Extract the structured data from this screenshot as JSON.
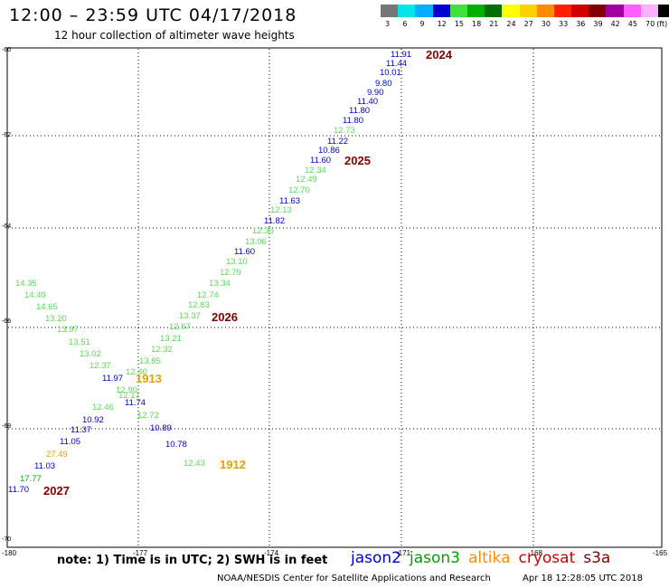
{
  "title": "12:00 – 23:59 UTC 04/17/2018",
  "subtitle": "12 hour collection of altimeter wave heights",
  "legend": {
    "labels": [
      "3",
      "6",
      "9",
      "12",
      "15",
      "18",
      "21",
      "24",
      "27",
      "30",
      "33",
      "36",
      "39",
      "42",
      "45",
      "70",
      "(ft)"
    ],
    "colors": [
      "#777777",
      "#00e5e5",
      "#00b0ff",
      "#0000d0",
      "#40e040",
      "#00b000",
      "#007000",
      "#ffff00",
      "#ffd000",
      "#ff8c00",
      "#ff2000",
      "#d00000",
      "#800000",
      "#a000a0",
      "#ff60ff",
      "#ffb0ff",
      "#000000"
    ]
  },
  "map": {
    "lon_ticks": [
      "-180",
      "-177",
      "-174",
      "-171",
      "-168",
      "-165"
    ],
    "lat_ticks": [
      "-60",
      "-62",
      "-64",
      "-66",
      "-68",
      "-70"
    ]
  },
  "points": [
    {
      "t": "11.91",
      "c": "#0000d0"
    },
    {
      "t": "11.44",
      "c": "#0000d0"
    },
    {
      "t": "10.01",
      "c": "#0000d0"
    },
    {
      "t": "9.80",
      "c": "#0000d0"
    },
    {
      "t": "9.90",
      "c": "#0000d0"
    },
    {
      "t": "11.40",
      "c": "#0000d0"
    },
    {
      "t": "11.80",
      "c": "#0000d0"
    },
    {
      "t": "11.80",
      "c": "#0000d0"
    },
    {
      "t": "12.73",
      "c": "#55dd55"
    },
    {
      "t": "11.22",
      "c": "#0000d0"
    },
    {
      "t": "10.86",
      "c": "#0000d0"
    },
    {
      "t": "11.60",
      "c": "#0000d0"
    },
    {
      "t": "12.34",
      "c": "#55dd55"
    },
    {
      "t": "12.49",
      "c": "#55dd55"
    },
    {
      "t": "12.70",
      "c": "#55dd55"
    },
    {
      "t": "11.63",
      "c": "#0000d0"
    },
    {
      "t": "12.13",
      "c": "#55dd55"
    },
    {
      "t": "11.82",
      "c": "#0000d0"
    },
    {
      "t": "12.30",
      "c": "#55dd55"
    },
    {
      "t": "13.06",
      "c": "#55dd55"
    },
    {
      "t": "11.60",
      "c": "#0000d0"
    },
    {
      "t": "13.10",
      "c": "#55dd55"
    },
    {
      "t": "12.79",
      "c": "#55dd55"
    },
    {
      "t": "13.34",
      "c": "#55dd55"
    },
    {
      "t": "12.74",
      "c": "#55dd55"
    },
    {
      "t": "12.83",
      "c": "#55dd55"
    },
    {
      "t": "13.37",
      "c": "#55dd55"
    },
    {
      "t": "12.67",
      "c": "#55dd55"
    },
    {
      "t": "13.21",
      "c": "#55dd55"
    },
    {
      "t": "12.32",
      "c": "#55dd55"
    },
    {
      "t": "13.85",
      "c": "#55dd55"
    },
    {
      "t": "12.40",
      "c": "#55dd55"
    },
    {
      "t": "12.90",
      "c": "#55dd55"
    },
    {
      "t": "12.17",
      "c": "#55dd55"
    },
    {
      "t": "11.74",
      "c": "#0000d0"
    },
    {
      "t": "12.72",
      "c": "#55dd55"
    },
    {
      "t": "10.89",
      "c": "#0000d0"
    },
    {
      "t": "10.78",
      "c": "#0000d0"
    },
    {
      "t": "12.43",
      "c": "#55dd55"
    },
    {
      "t": "14.35",
      "c": "#55dd55"
    },
    {
      "t": "14.49",
      "c": "#55dd55"
    },
    {
      "t": "14.65",
      "c": "#55dd55"
    },
    {
      "t": "13.20",
      "c": "#55dd55"
    },
    {
      "t": "13.97",
      "c": "#55dd55"
    },
    {
      "t": "13.51",
      "c": "#55dd55"
    },
    {
      "t": "13.02",
      "c": "#55dd55"
    },
    {
      "t": "12.37",
      "c": "#55dd55"
    },
    {
      "t": "11.97",
      "c": "#0000d0"
    },
    {
      "t": "12.46",
      "c": "#55dd55"
    },
    {
      "t": "10.92",
      "c": "#0000d0"
    },
    {
      "t": "11.37",
      "c": "#0000d0"
    },
    {
      "t": "11.05",
      "c": "#0000d0"
    },
    {
      "t": "27.49",
      "c": "#e8a000"
    },
    {
      "t": "11.03",
      "c": "#0000d0"
    },
    {
      "t": "17.77",
      "c": "#00b000"
    },
    {
      "t": "11.70",
      "c": "#0000d0"
    }
  ],
  "times": [
    {
      "t": "2024",
      "c": "#800000"
    },
    {
      "t": "2025",
      "c": "#800000"
    },
    {
      "t": "2026",
      "c": "#800000"
    },
    {
      "t": "1913",
      "c": "#e8a000"
    },
    {
      "t": "1912",
      "c": "#e8a000"
    },
    {
      "t": "2027",
      "c": "#800000"
    }
  ],
  "note": "note:  1) Time is in UTC;  2) SWH is in feet",
  "satellites": [
    {
      "name": "jason2",
      "color": "#0000d0"
    },
    {
      "name": "jason3",
      "color": "#00a000"
    },
    {
      "name": "altika",
      "color": "#ff8c00"
    },
    {
      "name": "cryosat",
      "color": "#d00000"
    },
    {
      "name": "s3a",
      "color": "#800000"
    }
  ],
  "credit": "NOAA/NESDIS Center for Satellite Applications and Research",
  "timestamp": "Apr 18 12:28:05 UTC 2018"
}
